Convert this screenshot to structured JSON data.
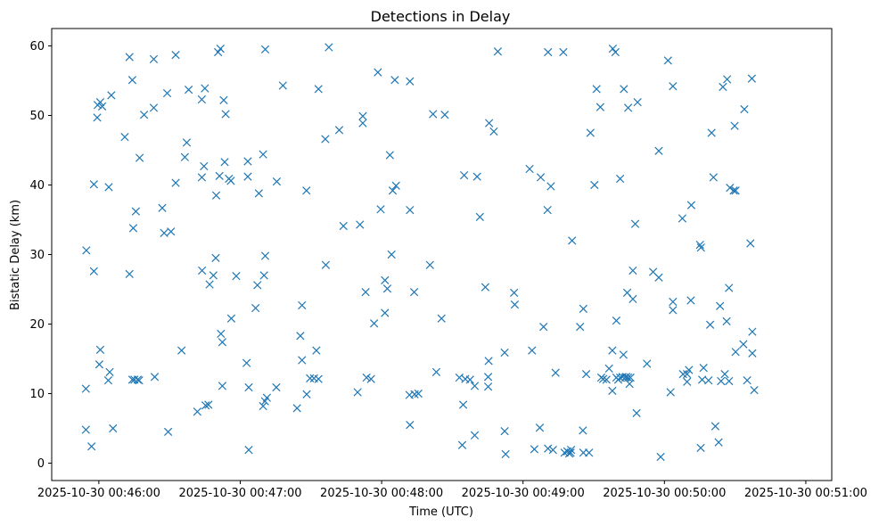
{
  "chart_data": {
    "type": "scatter",
    "title": "Detections in Delay",
    "xlabel": "Time (UTC)",
    "ylabel": "Bistatic Delay (km)",
    "x_unit": "seconds after 2025-10-30 00:46:00",
    "xlim": [
      -20,
      311
    ],
    "ylim": [
      -2.5,
      62.5
    ],
    "x_tick_values": [
      0,
      60,
      120,
      180,
      240,
      300
    ],
    "x_tick_labels": [
      "2025-10-30 00:46:00",
      "2025-10-30 00:47:00",
      "2025-10-30 00:48:00",
      "2025-10-30 00:49:00",
      "2025-10-30 00:50:00",
      "2025-10-30 00:51:00"
    ],
    "y_tick_values": [
      0,
      10,
      20,
      30,
      40,
      50,
      60
    ],
    "y_tick_labels": [
      "0",
      "10",
      "20",
      "30",
      "40",
      "50",
      "60"
    ],
    "marker": "x",
    "color": "#1f77b4",
    "grid": false,
    "series": [
      {
        "name": "Detections",
        "points": [
          [
            -5.3,
            30.6
          ],
          [
            -5.5,
            10.7
          ],
          [
            -5.5,
            4.8
          ],
          [
            -3.1,
            2.4
          ],
          [
            -2.1,
            27.6
          ],
          [
            -2.1,
            40.1
          ],
          [
            -0.7,
            49.7
          ],
          [
            -0.5,
            51.5
          ],
          [
            0.2,
            14.2
          ],
          [
            0.6,
            16.3
          ],
          [
            0.6,
            51.9
          ],
          [
            1.4,
            51.3
          ],
          [
            4.0,
            11.9
          ],
          [
            4.2,
            39.7
          ],
          [
            4.6,
            13.1
          ],
          [
            5.3,
            52.9
          ],
          [
            6.0,
            5.0
          ],
          [
            11.0,
            46.9
          ],
          [
            13.0,
            58.4
          ],
          [
            13.0,
            27.2
          ],
          [
            14.2,
            12.0
          ],
          [
            14.2,
            55.1
          ],
          [
            14.6,
            33.8
          ],
          [
            15.1,
            12.0
          ],
          [
            15.7,
            36.2
          ],
          [
            16.5,
            12.0
          ],
          [
            17.1,
            11.9
          ],
          [
            17.3,
            43.9
          ],
          [
            19.2,
            50.1
          ],
          [
            23.3,
            58.1
          ],
          [
            23.3,
            51.1
          ],
          [
            23.7,
            12.4
          ],
          [
            26.9,
            36.7
          ],
          [
            27.7,
            33.1
          ],
          [
            29.0,
            53.2
          ],
          [
            29.4,
            4.5
          ],
          [
            30.6,
            33.3
          ],
          [
            32.6,
            58.7
          ],
          [
            32.6,
            40.3
          ],
          [
            35.1,
            16.2
          ],
          [
            36.5,
            44.0
          ],
          [
            37.3,
            46.1
          ],
          [
            38.1,
            53.7
          ],
          [
            41.8,
            7.4
          ],
          [
            43.7,
            52.3
          ],
          [
            43.7,
            41.1
          ],
          [
            43.8,
            27.7
          ],
          [
            44.6,
            42.7
          ],
          [
            45.0,
            53.9
          ],
          [
            45.3,
            8.3
          ],
          [
            46.5,
            8.4
          ],
          [
            47.0,
            25.7
          ],
          [
            48.6,
            27.0
          ],
          [
            49.6,
            29.5
          ],
          [
            49.8,
            38.5
          ],
          [
            50.6,
            59.1
          ],
          [
            51.2,
            41.3
          ],
          [
            51.6,
            59.6
          ],
          [
            51.8,
            18.6
          ],
          [
            52.4,
            17.4
          ],
          [
            52.4,
            11.1
          ],
          [
            53.0,
            52.2
          ],
          [
            53.4,
            43.3
          ],
          [
            53.8,
            50.2
          ],
          [
            55.2,
            40.9
          ],
          [
            56.0,
            40.6
          ],
          [
            56.2,
            20.8
          ],
          [
            58.3,
            26.9
          ],
          [
            62.7,
            14.4
          ],
          [
            63.2,
            43.4
          ],
          [
            63.2,
            41.2
          ],
          [
            63.6,
            10.9
          ],
          [
            63.6,
            1.9
          ],
          [
            66.5,
            22.3
          ],
          [
            67.3,
            25.6
          ],
          [
            67.9,
            38.8
          ],
          [
            69.7,
            8.2
          ],
          [
            69.7,
            44.4
          ],
          [
            70.1,
            27.0
          ],
          [
            70.5,
            8.9
          ],
          [
            70.6,
            29.8
          ],
          [
            70.6,
            59.5
          ],
          [
            71.3,
            9.4
          ],
          [
            75.3,
            10.9
          ],
          [
            75.5,
            40.5
          ],
          [
            78.1,
            54.3
          ],
          [
            84.1,
            7.9
          ],
          [
            85.5,
            18.3
          ],
          [
            86.2,
            22.7
          ],
          [
            86.2,
            14.8
          ],
          [
            88.1,
            39.2
          ],
          [
            88.2,
            9.9
          ],
          [
            89.6,
            12.2
          ],
          [
            91.3,
            12.2
          ],
          [
            92.3,
            16.2
          ],
          [
            93.2,
            12.1
          ],
          [
            93.2,
            53.8
          ],
          [
            96.1,
            46.6
          ],
          [
            96.3,
            28.5
          ],
          [
            97.6,
            59.8
          ],
          [
            102.0,
            47.9
          ],
          [
            103.8,
            34.1
          ],
          [
            109.8,
            10.2
          ],
          [
            110.8,
            34.3
          ],
          [
            112.0,
            49.9
          ],
          [
            112.0,
            48.9
          ],
          [
            113.2,
            24.6
          ],
          [
            113.6,
            12.3
          ],
          [
            115.5,
            12.1
          ],
          [
            116.8,
            20.1
          ],
          [
            118.4,
            56.2
          ],
          [
            119.6,
            36.5
          ],
          [
            121.4,
            26.3
          ],
          [
            121.4,
            21.6
          ],
          [
            122.4,
            25.1
          ],
          [
            123.5,
            44.3
          ],
          [
            124.2,
            30.0
          ],
          [
            124.7,
            39.2
          ],
          [
            125.6,
            55.1
          ],
          [
            126.1,
            39.9
          ],
          [
            132.0,
            54.9
          ],
          [
            132.0,
            36.4
          ],
          [
            131.8,
            9.8
          ],
          [
            132.0,
            5.5
          ],
          [
            133.8,
            24.6
          ],
          [
            134.0,
            9.9
          ],
          [
            135.6,
            10.0
          ],
          [
            140.5,
            28.5
          ],
          [
            141.8,
            50.2
          ],
          [
            143.2,
            13.1
          ],
          [
            145.4,
            20.8
          ],
          [
            146.8,
            50.1
          ],
          [
            153.0,
            12.3
          ],
          [
            154.2,
            2.6
          ],
          [
            154.6,
            8.4
          ],
          [
            155.0,
            41.4
          ],
          [
            155.5,
            12.1
          ],
          [
            157.5,
            12.0
          ],
          [
            159.5,
            11.1
          ],
          [
            159.5,
            4.0
          ],
          [
            160.5,
            41.2
          ],
          [
            161.7,
            35.4
          ],
          [
            164.0,
            25.3
          ],
          [
            165.2,
            11.0
          ],
          [
            165.2,
            12.4
          ],
          [
            165.4,
            14.7
          ],
          [
            165.6,
            48.9
          ],
          [
            167.6,
            47.7
          ],
          [
            169.3,
            59.2
          ],
          [
            172.2,
            15.9
          ],
          [
            172.2,
            4.6
          ],
          [
            172.6,
            1.3
          ],
          [
            176.2,
            24.5
          ],
          [
            176.5,
            22.8
          ],
          [
            182.8,
            42.3
          ],
          [
            183.8,
            16.2
          ],
          [
            184.8,
            2.0
          ],
          [
            187.1,
            5.1
          ],
          [
            187.5,
            41.1
          ],
          [
            188.7,
            19.6
          ],
          [
            190.4,
            36.4
          ],
          [
            190.6,
            59.1
          ],
          [
            190.6,
            2.1
          ],
          [
            191.8,
            39.8
          ],
          [
            192.7,
            1.9
          ],
          [
            193.8,
            13.0
          ],
          [
            197.1,
            59.1
          ],
          [
            197.6,
            1.5
          ],
          [
            198.8,
            1.7
          ],
          [
            199.6,
            1.4
          ],
          [
            200.2,
            1.5
          ],
          [
            200.4,
            1.9
          ],
          [
            200.8,
            32.0
          ],
          [
            204.2,
            19.6
          ],
          [
            205.4,
            4.7
          ],
          [
            205.6,
            1.5
          ],
          [
            205.6,
            22.2
          ],
          [
            206.8,
            12.8
          ],
          [
            208.0,
            1.5
          ],
          [
            208.6,
            47.5
          ],
          [
            210.3,
            40.0
          ],
          [
            211.2,
            53.8
          ],
          [
            212.8,
            51.2
          ],
          [
            213.2,
            12.3
          ],
          [
            214.0,
            12.1
          ],
          [
            215.4,
            12.0
          ],
          [
            216.5,
            13.6
          ],
          [
            217.9,
            10.4
          ],
          [
            217.9,
            16.2
          ],
          [
            218.1,
            59.6
          ],
          [
            219.2,
            59.1
          ],
          [
            219.6,
            12.3
          ],
          [
            219.6,
            20.5
          ],
          [
            220.4,
            12.0
          ],
          [
            221.2,
            12.3
          ],
          [
            221.2,
            40.9
          ],
          [
            222.2,
            12.4
          ],
          [
            222.6,
            15.6
          ],
          [
            222.8,
            53.8
          ],
          [
            223.4,
            12.3
          ],
          [
            223.8,
            12.4
          ],
          [
            224.2,
            24.5
          ],
          [
            224.6,
            12.3
          ],
          [
            224.6,
            51.1
          ],
          [
            225.2,
            11.4
          ],
          [
            225.6,
            12.3
          ],
          [
            226.6,
            27.7
          ],
          [
            226.6,
            23.6
          ],
          [
            227.6,
            34.4
          ],
          [
            228.2,
            7.2
          ],
          [
            228.6,
            51.9
          ],
          [
            232.6,
            14.3
          ],
          [
            235.2,
            27.5
          ],
          [
            237.6,
            26.7
          ],
          [
            237.6,
            44.9
          ],
          [
            238.4,
            0.9
          ],
          [
            241.5,
            57.9
          ],
          [
            242.6,
            10.2
          ],
          [
            243.6,
            54.2
          ],
          [
            243.6,
            23.2
          ],
          [
            243.6,
            22.0
          ],
          [
            247.6,
            35.2
          ],
          [
            247.9,
            12.8
          ],
          [
            249.6,
            11.7
          ],
          [
            249.6,
            12.8
          ],
          [
            250.4,
            13.4
          ],
          [
            251.2,
            23.4
          ],
          [
            251.4,
            37.1
          ],
          [
            255.1,
            31.4
          ],
          [
            255.4,
            2.2
          ],
          [
            255.5,
            31.0
          ],
          [
            256.0,
            12.0
          ],
          [
            256.6,
            13.7
          ],
          [
            258.7,
            11.9
          ],
          [
            259.4,
            19.9
          ],
          [
            260.0,
            47.5
          ],
          [
            260.8,
            41.1
          ],
          [
            261.6,
            5.3
          ],
          [
            263.0,
            3.0
          ],
          [
            263.6,
            22.6
          ],
          [
            264.0,
            11.8
          ],
          [
            264.8,
            54.1
          ],
          [
            265.6,
            12.8
          ],
          [
            266.4,
            20.4
          ],
          [
            266.6,
            55.2
          ],
          [
            267.4,
            11.8
          ],
          [
            267.4,
            25.2
          ],
          [
            267.8,
            39.6
          ],
          [
            269.4,
            39.2
          ],
          [
            269.8,
            48.5
          ],
          [
            270.2,
            16.0
          ],
          [
            270.2,
            39.2
          ],
          [
            273.5,
            17.1
          ],
          [
            273.9,
            50.9
          ],
          [
            275.1,
            11.9
          ],
          [
            276.5,
            31.6
          ],
          [
            277.1,
            55.3
          ],
          [
            277.3,
            18.9
          ],
          [
            277.3,
            15.8
          ],
          [
            278.1,
            10.5
          ]
        ]
      }
    ]
  }
}
